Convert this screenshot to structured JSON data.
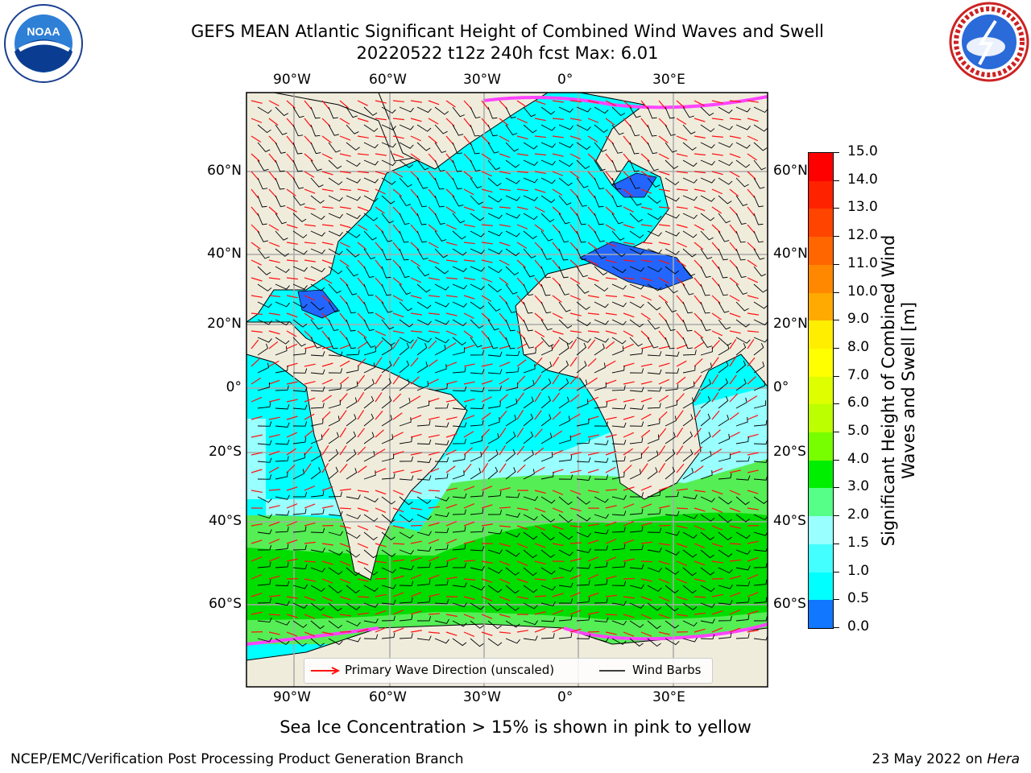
{
  "header": {
    "title_line1": "GEFS MEAN Atlantic Significant Height of Combined Wind Waves and Swell",
    "title_line2": "20220522 t12z 240h fcst   Max: 6.01"
  },
  "logos": {
    "left": "noaa-logo",
    "right": "national-weather-service-logo"
  },
  "map": {
    "lon_labels": [
      "90°W",
      "60°W",
      "30°W",
      "0°",
      "30°E"
    ],
    "lat_labels_left": [
      "60°N",
      "40°N",
      "20°N",
      "0°",
      "20°S",
      "40°S",
      "60°S"
    ],
    "lat_labels_right": [
      "60°N",
      "40°N",
      "20°N",
      "0°",
      "20°S",
      "40°S",
      "60°S"
    ],
    "colors": {
      "land": "#efecdc",
      "ocean_low": "#00ffff",
      "ocean_mid": "#99ffff",
      "wave_green": "#00dd00",
      "wave_light_green": "#55ee55",
      "inland_sea": "#2266ff",
      "ice_pink": "#ff44ff",
      "gridline": "#aaaaaa",
      "wave_arrow": "#ff1111",
      "wind_barb": "#000000"
    }
  },
  "legend": {
    "wave_direction": "Primary Wave Direction (unscaled)",
    "wind_barbs": "Wind Barbs"
  },
  "colorbar": {
    "ticks": [
      "15.0",
      "14.0",
      "13.0",
      "12.0",
      "11.0",
      "10.0",
      "9.0",
      "8.0",
      "7.0",
      "6.0",
      "5.0",
      "4.0",
      "3.0",
      "2.0",
      "1.5",
      "1.0",
      "0.5",
      "0.0"
    ],
    "colors": [
      "#ff0000",
      "#ff2200",
      "#ff4400",
      "#ff6600",
      "#ff8800",
      "#ffaa00",
      "#ffee00",
      "#ffff00",
      "#ddff00",
      "#bbff00",
      "#77ff00",
      "#00ee00",
      "#55ff88",
      "#99ffff",
      "#44ffff",
      "#00ffff",
      "#1177ff",
      "#0000ff"
    ],
    "label": "Significant Height of Combined Wind Waves and Swell [m]"
  },
  "footer": {
    "ice_note": "Sea Ice Concentration > 15% is shown in pink to yellow",
    "left": "NCEP/EMC/Verification Post Processing Product Generation Branch",
    "right_date": "23 May 2022 on ",
    "right_host": "Hera"
  }
}
